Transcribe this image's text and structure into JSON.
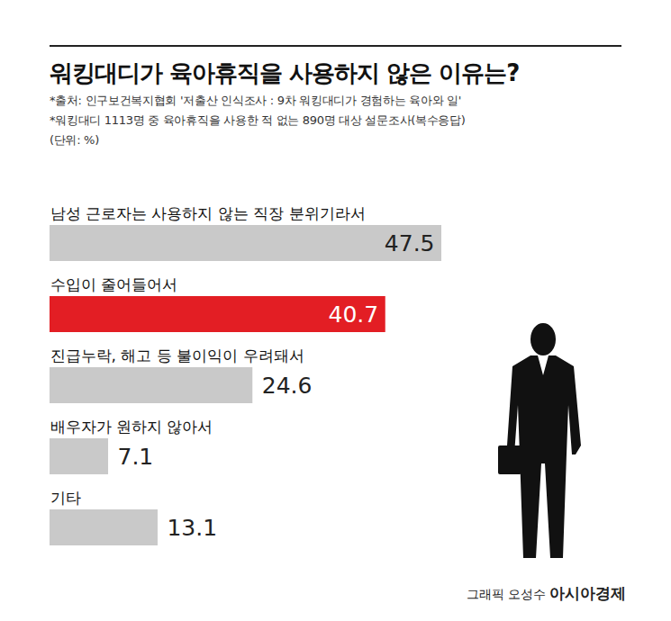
{
  "chart_data": {
    "type": "bar",
    "orientation": "horizontal",
    "title": "워킹대디가 육아휴직을 사용하지 않은 이유는?",
    "subtitle": [
      "*출처: 인구보건복지협회 '저출산 인식조사 : 9차 워킹대디가 경험하는 육아와 일'",
      "*워킹대디 1113명 중 육아휴직을 사용한 적 없는 890명 대상 설문조사(복수응답)",
      "(단위: %)"
    ],
    "categories": [
      "남성 근로자는 사용하지 않는 직장 분위기라서",
      "수입이 줄어들어서",
      "진급누락, 해고 등 불이익이 우려돼서",
      "배우자가 원하지 않아서",
      "기타"
    ],
    "values": [
      47.5,
      40.7,
      24.6,
      7.1,
      13.1
    ],
    "colors": [
      "#c9c9c9",
      "#e31e24",
      "#c9c9c9",
      "#c9c9c9",
      "#c9c9c9"
    ],
    "xlim": [
      0,
      47.5
    ],
    "data_labels": true,
    "tick_labels": false,
    "grid": false,
    "credit": "그래픽 오성수",
    "publisher": "아시아경제"
  }
}
